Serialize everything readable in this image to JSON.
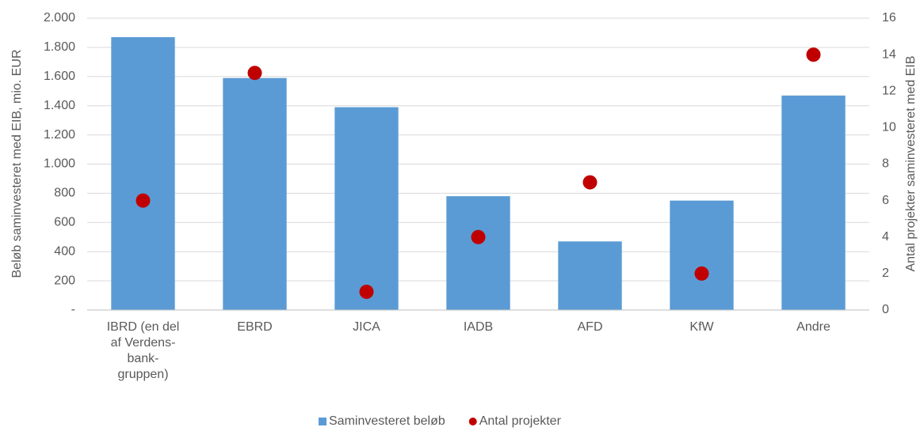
{
  "chart_data": {
    "type": "bar",
    "categories": [
      "IBRD (en del\naf Verdens-\nbank-\ngruppen)",
      "EBRD",
      "JICA",
      "IADB",
      "AFD",
      "KfW",
      "Andre"
    ],
    "series": [
      {
        "name": "Saminvesteret beløb",
        "type": "bar",
        "color": "#5b9bd5",
        "values": [
          1870,
          1590,
          1390,
          780,
          470,
          750,
          1470
        ]
      },
      {
        "name": "Antal projekter",
        "type": "scatter",
        "axis": "y2",
        "color": "#c00000",
        "values": [
          6,
          13,
          1,
          4,
          7,
          2,
          14
        ]
      }
    ],
    "ylabel": "Beløb saminvesteret med EIB, mio. EUR",
    "y2label": "Antal projekter saminvesteret med EIB",
    "ylim": [
      0,
      2000
    ],
    "yticks": [
      {
        "value": 0,
        "label": "-"
      },
      200,
      400,
      600,
      800,
      {
        "value": 1000,
        "label": "1.000"
      },
      {
        "value": 1200,
        "label": "1.200"
      },
      {
        "value": 1400,
        "label": "1.400"
      },
      {
        "value": 1600,
        "label": "1.600"
      },
      {
        "value": 1800,
        "label": "1.800"
      },
      {
        "value": 2000,
        "label": "2.000"
      }
    ],
    "y2lim": [
      0,
      16
    ],
    "y2ticks": [
      0,
      2,
      4,
      6,
      8,
      10,
      12,
      14,
      16
    ],
    "grid": true,
    "legend": "bottom"
  }
}
